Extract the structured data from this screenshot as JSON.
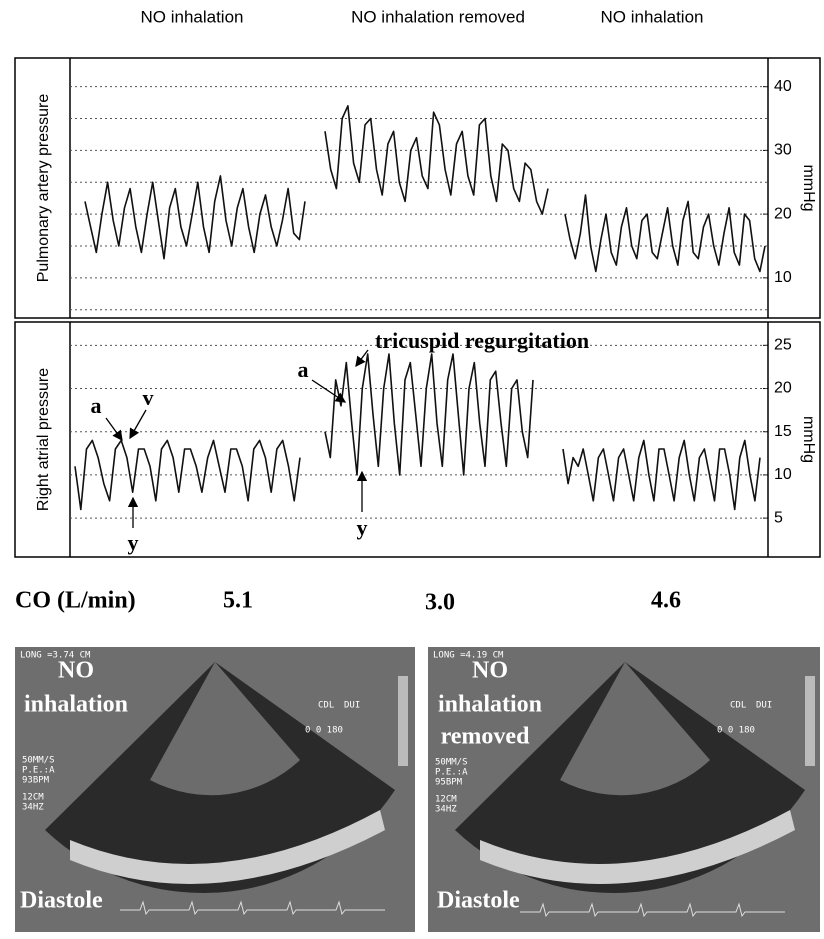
{
  "header": {
    "labels": [
      "NO inhalation",
      "NO inhalation removed",
      "NO inhalation"
    ]
  },
  "chart_data": [
    {
      "type": "line",
      "ylabel": "Pulmonary artery pressure",
      "y2label": "mmHg",
      "ylim": [
        3.7,
        44.5
      ],
      "yticks": [
        10,
        20,
        30,
        40
      ],
      "minor_yticks": [
        5,
        15,
        25,
        35
      ],
      "grid": true,
      "series": [
        {
          "color": "#111111",
          "values": [
            22,
            18,
            14,
            20,
            25,
            19,
            15,
            21,
            24,
            18,
            14,
            20,
            25,
            19,
            13,
            21,
            24,
            18,
            15,
            20,
            25,
            18,
            14,
            22,
            26,
            19,
            15,
            21,
            24,
            18,
            14,
            20,
            23,
            18,
            15,
            19,
            24,
            17,
            16,
            22
          ]
        },
        {
          "color": "#111111",
          "values": [
            33,
            27,
            24,
            35,
            37,
            28,
            25,
            34,
            35,
            27,
            23,
            31,
            33,
            25,
            22,
            30,
            32,
            26,
            24,
            36,
            34,
            27,
            23,
            31,
            33,
            26,
            23,
            34,
            35,
            26,
            22,
            31,
            30,
            24,
            22,
            28,
            27,
            22,
            20,
            24
          ]
        },
        {
          "color": "#111111",
          "values": [
            20,
            16,
            13,
            17,
            23,
            15,
            11,
            16,
            20,
            14,
            12,
            18,
            21,
            15,
            13,
            19,
            20,
            14,
            13,
            17,
            21,
            15,
            12,
            19,
            22,
            14,
            13,
            18,
            20,
            15,
            12,
            17,
            21,
            14,
            12,
            20,
            19,
            13,
            11,
            15
          ]
        }
      ]
    },
    {
      "type": "line",
      "ylabel": "Right atrial pressure",
      "y2label": "mmHg",
      "ylim": [
        0.5,
        27.7
      ],
      "yticks": [
        5,
        10,
        15,
        20,
        25
      ],
      "grid": true,
      "annotations": [
        "a",
        "v",
        "y",
        "y",
        "a",
        "tricuspid regurgitation"
      ],
      "series": [
        {
          "color": "#111111",
          "values": [
            11,
            6,
            13,
            14,
            12,
            9,
            7,
            13,
            14,
            12,
            8,
            13,
            13,
            11,
            7,
            13,
            14,
            12,
            8,
            13,
            13,
            11,
            8,
            12,
            14,
            11,
            8,
            13,
            13,
            11,
            7,
            13,
            14,
            12,
            8,
            13,
            14,
            11,
            7,
            12
          ]
        },
        {
          "color": "#111111",
          "values": [
            15,
            12,
            21,
            18,
            23,
            16,
            10,
            20,
            24,
            17,
            11,
            20,
            24,
            16,
            10,
            21,
            23,
            17,
            11,
            20,
            24,
            16,
            11,
            21,
            24,
            17,
            10,
            20,
            23,
            16,
            11,
            21,
            22,
            16,
            11,
            20,
            21,
            15,
            12,
            21
          ]
        },
        {
          "color": "#111111",
          "values": [
            13,
            9,
            12,
            11,
            13,
            10,
            7,
            12,
            13,
            10,
            7,
            12,
            13,
            10,
            7,
            12,
            14,
            10,
            7,
            13,
            13,
            10,
            7,
            12,
            14,
            10,
            7,
            12,
            13,
            10,
            7,
            13,
            13,
            10,
            6,
            12,
            14,
            10,
            7,
            12
          ]
        }
      ]
    }
  ],
  "co": {
    "label": "CO (L/min)",
    "values": [
      "5.1",
      "3.0",
      "4.6"
    ]
  },
  "echo": [
    {
      "measure": "LONG =3.74 CM",
      "label": [
        "NO",
        "inhalation"
      ],
      "cdl": "CDL",
      "mode": "DUI",
      "range": "0  0 180",
      "settings": [
        "50MM/S",
        "P.E.:A",
        "93BPM"
      ],
      "depth": [
        "12CM",
        "34HZ"
      ],
      "phase": "Diastole"
    },
    {
      "measure": "LONG =4.19 CM",
      "label": [
        "NO",
        "inhalation",
        "removed"
      ],
      "cdl": "CDL",
      "mode": "DUI",
      "range": "0  0 180",
      "settings": [
        "50MM/S",
        "P.E.:A",
        "95BPM"
      ],
      "depth": [
        "12CM",
        "34HZ"
      ],
      "phase": "Diastole"
    }
  ]
}
